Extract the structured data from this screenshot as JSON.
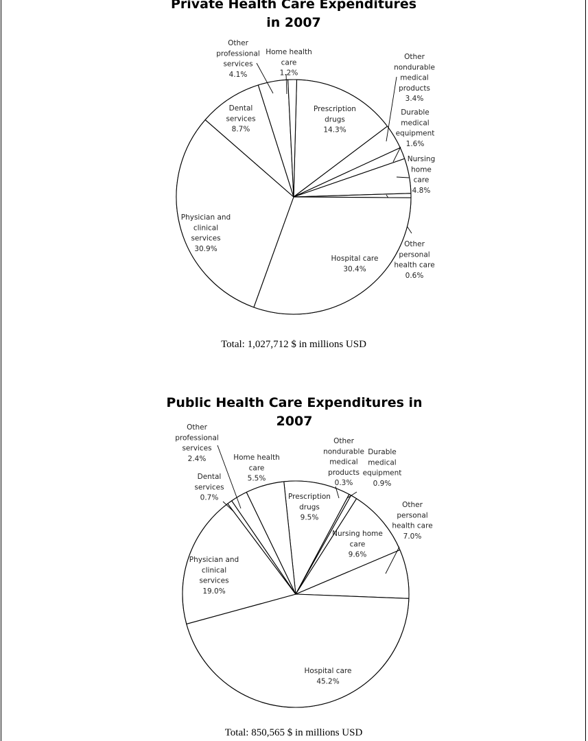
{
  "chart_data": [
    {
      "type": "pie",
      "title_lines": [
        "Private Health Care Expenditures",
        "in 2007"
      ],
      "total_text": "Total: 1,027,712 $ in millions USD",
      "slices": [
        {
          "name": "Prescription drugs",
          "value": 14.3,
          "label_lines": [
            "Prescription",
            "drugs",
            "14.3%"
          ]
        },
        {
          "name": "Other nondurable medical products",
          "value": 3.4,
          "label_lines": [
            "Other",
            "nondurable",
            "medical",
            "products",
            "3.4%"
          ]
        },
        {
          "name": "Durable medical equipment",
          "value": 1.6,
          "label_lines": [
            "Durable",
            "medical",
            "equipment",
            "1.6%"
          ]
        },
        {
          "name": "Nursing home care",
          "value": 4.8,
          "label_lines": [
            "Nursing",
            "home",
            "care",
            "4.8%"
          ]
        },
        {
          "name": "Other personal health care",
          "value": 0.6,
          "label_lines": [
            "Other",
            "personal",
            "health care",
            "0.6%"
          ]
        },
        {
          "name": "Hospital care",
          "value": 30.4,
          "label_lines": [
            "Hospital care",
            "30.4%"
          ]
        },
        {
          "name": "Physician and clinical services",
          "value": 30.9,
          "label_lines": [
            "Physician and",
            "clinical",
            "services",
            "30.9%"
          ]
        },
        {
          "name": "Dental services",
          "value": 8.7,
          "label_lines": [
            "Dental",
            "services",
            "8.7%"
          ]
        },
        {
          "name": "Other professional services",
          "value": 4.1,
          "label_lines": [
            "Other",
            "professional",
            "services",
            "4.1%"
          ]
        },
        {
          "name": "Home health care",
          "value": 1.2,
          "label_lines": [
            "Home health",
            "care",
            "1.2%"
          ]
        }
      ]
    },
    {
      "type": "pie",
      "title_lines": [
        "Public Health Care Expenditures in",
        "2007"
      ],
      "total_text": "Total: 850,565 $ in millions USD",
      "slices": [
        {
          "name": "Prescription drugs",
          "value": 9.5,
          "label_lines": [
            "Prescription",
            "drugs",
            "9.5%"
          ]
        },
        {
          "name": "Other nondurable medical products",
          "value": 0.3,
          "label_lines": [
            "Other",
            "nondurable",
            "medical",
            "products",
            "0.3%"
          ]
        },
        {
          "name": "Durable medical equipment",
          "value": 0.9,
          "label_lines": [
            "Durable",
            "medical",
            "equipment",
            "0.9%"
          ]
        },
        {
          "name": "Nursing home care",
          "value": 9.6,
          "label_lines": [
            "Nursing home",
            "care",
            "9.6%"
          ]
        },
        {
          "name": "Other personal health care",
          "value": 7.0,
          "label_lines": [
            "Other",
            "personal",
            "health care",
            "7.0%"
          ]
        },
        {
          "name": "Hospital care",
          "value": 45.2,
          "label_lines": [
            "Hospital care",
            "45.2%"
          ]
        },
        {
          "name": "Physician and clinical services",
          "value": 19.0,
          "label_lines": [
            "Physician and",
            "clinical",
            "services",
            "19.0%"
          ]
        },
        {
          "name": "Dental services",
          "value": 0.7,
          "label_lines": [
            "Dental",
            "services",
            "0.7%"
          ]
        },
        {
          "name": "Other professional services",
          "value": 2.4,
          "label_lines": [
            "Other",
            "professional",
            "services",
            "2.4%"
          ]
        },
        {
          "name": "Home health care",
          "value": 5.5,
          "label_lines": [
            "Home health",
            "care",
            "5.5%"
          ]
        }
      ]
    }
  ]
}
